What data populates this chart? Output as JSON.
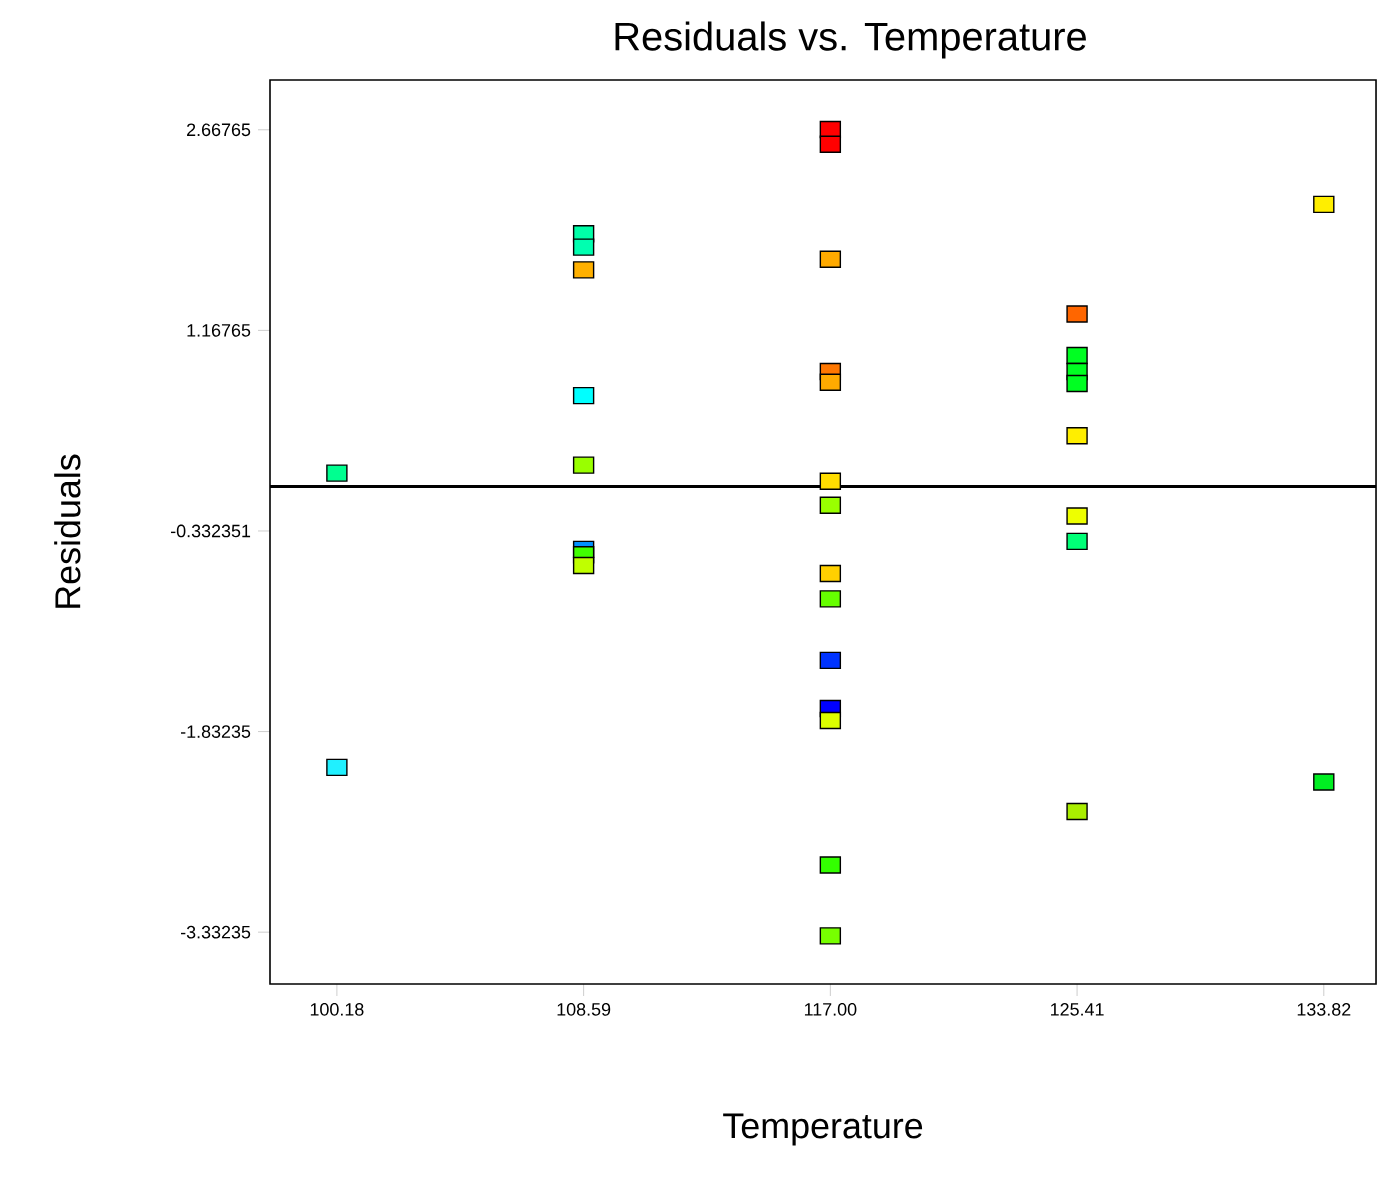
{
  "chart_data": {
    "type": "scatter",
    "title": "Residuals vs. Temperature",
    "xlabel": "Temperature",
    "ylabel": "Residuals",
    "marker": "square",
    "x": [
      100.18,
      100.18,
      108.59,
      108.59,
      108.59,
      108.59,
      108.59,
      108.59,
      108.59,
      108.59,
      117,
      117,
      117,
      117,
      117,
      117,
      117,
      117,
      117,
      117,
      117,
      117,
      117,
      117,
      125.41,
      125.41,
      125.41,
      125.41,
      125.41,
      125.41,
      125.41,
      125.41,
      133.82,
      133.82
    ],
    "values": [
      0.1,
      -2.1,
      1.89,
      1.79,
      1.62,
      0.68,
      0.16,
      -0.47,
      -0.51,
      -0.59,
      2.67,
      2.56,
      1.7,
      0.86,
      0.78,
      0.04,
      -0.14,
      -0.65,
      -0.84,
      -1.3,
      -1.66,
      -1.75,
      -2.83,
      -3.36,
      1.29,
      0.98,
      0.86,
      0.77,
      0.38,
      -0.22,
      -0.41,
      -2.43,
      2.11,
      -2.21
    ],
    "colors": [
      "#00ff90",
      "#20f0ff",
      "#00ffa8",
      "#00ffb0",
      "#ffb000",
      "#00ffff",
      "#99ff00",
      "#0090ff",
      "#40ff00",
      "#c0ff00",
      "#ff0000",
      "#ff0000",
      "#ffaa00",
      "#ff7700",
      "#ffaa00",
      "#ffdd00",
      "#99ff00",
      "#ffd000",
      "#66ff00",
      "#0033ff",
      "#0000ff",
      "#ddff00",
      "#33ff00",
      "#77ff00",
      "#ff6600",
      "#00ff22",
      "#00ff22",
      "#00ff22",
      "#ffee00",
      "#eeff00",
      "#00ff77",
      "#aaee00",
      "#ffee00",
      "#00ee22"
    ],
    "xlim": [
      97.9,
      135.6
    ],
    "ylim": [
      -3.72,
      3.04
    ],
    "xticks": [
      100.18,
      108.59,
      {
        "value": 117,
        "label": "117.00"
      },
      125.41,
      133.82
    ],
    "yticks": [
      -3.33235,
      -1.83235,
      -0.332351,
      1.16765,
      2.66765
    ],
    "ref_lines": [
      {
        "axis": "y",
        "value": 0,
        "color": "#000000"
      }
    ]
  }
}
